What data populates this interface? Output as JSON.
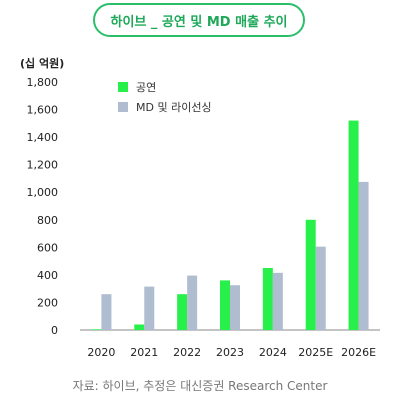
{
  "title": "하이브 _ 공연 및 MD 매출 추이",
  "unit_label": "(십 억원)",
  "source": "자료: 하이브, 추정은 대신증권 Research Center",
  "colors": {
    "accent": "#2bbf6b",
    "concert": "#28f04a",
    "md": "#b0bccf"
  },
  "chart_data": {
    "type": "bar",
    "categories": [
      "2020",
      "2021",
      "2022",
      "2023",
      "2024",
      "2025E",
      "2026E"
    ],
    "series": [
      {
        "name": "공연",
        "values": [
          5,
          40,
          260,
          360,
          450,
          800,
          1520
        ]
      },
      {
        "name": "MD 및 라이선싱",
        "values": [
          260,
          315,
          395,
          325,
          415,
          605,
          1075
        ]
      }
    ],
    "ylim": [
      0,
      1800
    ],
    "yticks": [
      "0",
      "200",
      "400",
      "600",
      "800",
      "1,000",
      "1,200",
      "1,400",
      "1,600",
      "1,800"
    ],
    "grid": false,
    "legend_position": "top-left"
  }
}
